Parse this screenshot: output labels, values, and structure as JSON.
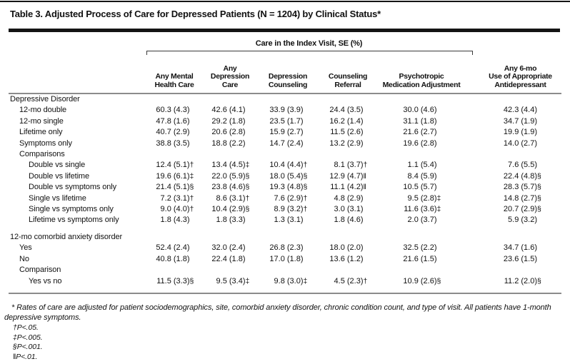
{
  "title": "Table 3. Adjusted Process of Care for Depressed Patients (N = 1204) by Clinical Status*",
  "table": {
    "spanner": "Care in the Index Visit, SE (%)",
    "columns": [
      {
        "lines": [
          "Any Mental",
          "Health Care"
        ]
      },
      {
        "lines": [
          "Any",
          "Depression",
          "Care"
        ]
      },
      {
        "lines": [
          "Depression",
          "Counseling"
        ]
      },
      {
        "lines": [
          "Counseling",
          "Referral"
        ]
      },
      {
        "lines": [
          "Psychotropic",
          "Medication Adjustment"
        ]
      },
      {
        "lines": [
          "Any 6-mo",
          "Use of Appropriate",
          "Antidepressant"
        ]
      }
    ],
    "rows": [
      {
        "type": "section",
        "label": "Depressive Disorder"
      },
      {
        "type": "item",
        "label": "12-mo double",
        "cells": [
          "60.3 (4.3)",
          "42.6 (4.1)",
          "33.9 (3.9)",
          "24.4 (3.5)",
          "30.0 (4.6)",
          "42.3 (4.4)"
        ]
      },
      {
        "type": "item",
        "label": "12-mo single",
        "cells": [
          "47.8 (1.6)",
          "29.2 (1.8)",
          "23.5 (1.7)",
          "16.2 (1.4)",
          "31.1 (1.8)",
          "34.7 (1.9)"
        ]
      },
      {
        "type": "item",
        "label": "Lifetime only",
        "cells": [
          "40.7 (2.9)",
          "20.6 (2.8)",
          "15.9 (2.7)",
          "11.5 (2.6)",
          "21.6 (2.7)",
          "19.9 (1.9)"
        ]
      },
      {
        "type": "item",
        "label": "Symptoms only",
        "cells": [
          "38.8 (3.5)",
          "18.8 (2.2)",
          "14.7 (2.4)",
          "13.2 (2.9)",
          "19.6 (2.8)",
          "14.0 (2.7)"
        ]
      },
      {
        "type": "subsection",
        "label": "Comparisons"
      },
      {
        "type": "subitem",
        "label": "Double vs single",
        "cells": [
          "12.4 (5.1)†",
          "13.4 (4.5)‡",
          "10.4 (4.4)†",
          "8.1 (3.7)†",
          "1.1 (5.4)",
          "7.6 (5.5)"
        ]
      },
      {
        "type": "subitem",
        "label": "Double vs lifetime",
        "cells": [
          "19.6 (6.1)‡",
          "22.0 (5.9)§",
          "18.0 (5.4)§",
          "12.9 (4.7)‖",
          "8.4 (5.9)",
          "22.4 (4.8)§"
        ]
      },
      {
        "type": "subitem",
        "label": "Double vs symptoms only",
        "cells": [
          "21.4 (5.1)§",
          "23.8 (4.6)§",
          "19.3 (4.8)§",
          "11.1 (4.2)‖",
          "10.5 (5.7)",
          "28.3 (5.7)§"
        ]
      },
      {
        "type": "subitem",
        "label": "Single vs lifetime",
        "cells": [
          "7.2 (3.1)†",
          "8.6 (3.1)†",
          "7.6 (2.9)†",
          "4.8 (2.9)",
          "9.5 (2.8)‡",
          "14.8 (2.7)§"
        ]
      },
      {
        "type": "subitem",
        "label": "Single vs symptoms only",
        "cells": [
          "9.0 (4.0)†",
          "10.4 (2.9)§",
          "8.9 (3.2)†",
          "3.0 (3.1)",
          "11.6 (3.6)‡",
          "20.7 (2.9)§"
        ]
      },
      {
        "type": "subitem",
        "label": "Lifetime vs symptoms only",
        "cells": [
          "1.8 (4.3)",
          "1.8 (3.3)",
          "1.3 (3.1)",
          "1.8 (4.6)",
          "2.0 (3.7)",
          "5.9 (3.2)"
        ]
      },
      {
        "type": "section",
        "label": "12-mo comorbid anxiety disorder",
        "gap_before": true
      },
      {
        "type": "item",
        "label": "Yes",
        "cells": [
          "52.4 (2.4)",
          "32.0 (2.4)",
          "26.8 (2.3)",
          "18.0 (2.0)",
          "32.5 (2.2)",
          "34.7 (1.6)"
        ]
      },
      {
        "type": "item",
        "label": "No",
        "cells": [
          "40.8 (1.8)",
          "22.4 (1.8)",
          "17.0 (1.8)",
          "13.6 (1.2)",
          "21.6 (1.5)",
          "23.6 (1.5)"
        ]
      },
      {
        "type": "subsection",
        "label": "Comparison"
      },
      {
        "type": "subitem",
        "label": "Yes vs no",
        "cells": [
          "11.5 (3.3)§",
          "9.5 (3.4)‡",
          "9.8 (3.0)‡",
          "4.5 (2.3)†",
          "10.9 (2.6)§",
          "11.2 (2.0)§"
        ]
      }
    ]
  },
  "footnotes": {
    "adjustment_note": "* Rates of care are adjusted for patient sociodemographics, site, comorbid anxiety disorder, chronic condition count, and type of visit. All patients have 1-month depressive symptoms.",
    "significance": [
      "†P<.05.",
      "‡P<.005.",
      "§P<.001.",
      "‖P<.01."
    ]
  },
  "colors": {
    "text": "#111111",
    "rule_dark": "#141414",
    "rule_light": "#8c8c8c",
    "background": "#ffffff"
  }
}
